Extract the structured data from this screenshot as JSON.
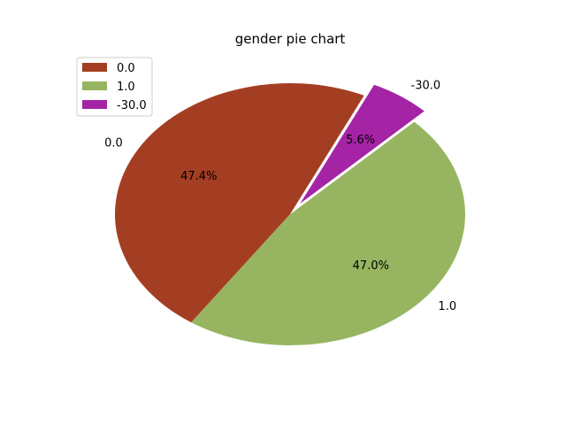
{
  "chart_data": {
    "type": "pie",
    "title": "gender pie chart",
    "categories": [
      "0.0",
      "1.0",
      "-30.0"
    ],
    "values": [
      47.4,
      47.0,
      5.6
    ],
    "percent_labels": [
      "47.4%",
      "47.0%",
      "5.6%"
    ],
    "colors": [
      "#a43e22",
      "#97b561",
      "#a524a5"
    ],
    "exploded": [
      false,
      false,
      true
    ],
    "legend_position": "top-left"
  }
}
